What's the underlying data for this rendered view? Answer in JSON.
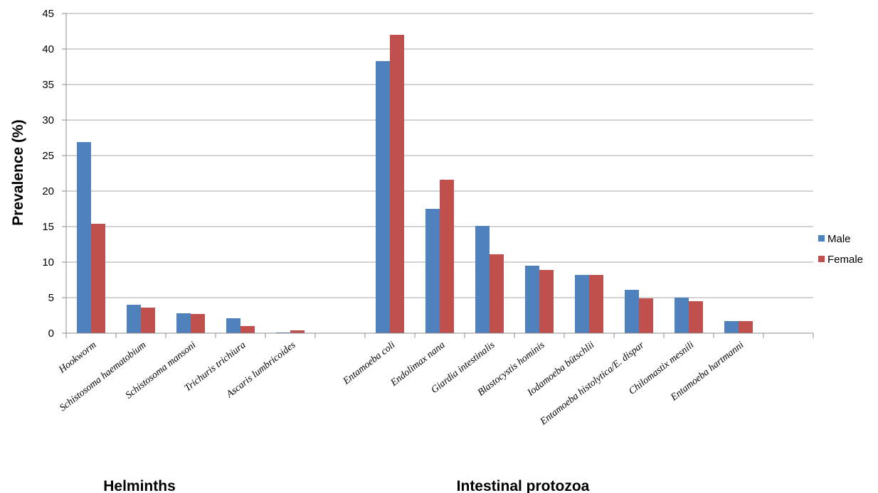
{
  "chart_data": {
    "type": "bar",
    "ylabel": "Prevalence  (%)",
    "ylim": [
      0,
      45
    ],
    "yticks": [
      0,
      5,
      10,
      15,
      20,
      25,
      30,
      35,
      40,
      45
    ],
    "grid": true,
    "legend_position": "right",
    "categories": [
      "Hookworm",
      "Schistosoma haematobium",
      "Schistosoma mansoni",
      "Trichuris trichiura",
      "Ascaris lumbricoides",
      "",
      "Entamoeba coli",
      "Endolimax nana",
      "Giardia intestinalis",
      "Blastocystis hominis",
      "Iodamoeba bütschlii",
      "Entamoeba histolytica/E. dispar",
      "Chilomastix mesnili",
      "Entamoeba hartmanni",
      ""
    ],
    "series": [
      {
        "name": "Male",
        "color": "#4f81bd",
        "values": [
          26.9,
          4.0,
          2.8,
          2.1,
          0.1,
          null,
          38.3,
          17.5,
          15.1,
          9.5,
          8.2,
          6.1,
          5.0,
          1.7,
          null
        ]
      },
      {
        "name": "Female",
        "color": "#c0504d",
        "values": [
          15.4,
          3.6,
          2.7,
          1.0,
          0.4,
          null,
          42.0,
          21.6,
          11.1,
          8.9,
          8.2,
          4.9,
          4.5,
          1.7,
          null
        ]
      }
    ],
    "groups": [
      {
        "label": "Helminths"
      },
      {
        "label": "Intestinal  protozoa"
      }
    ]
  }
}
